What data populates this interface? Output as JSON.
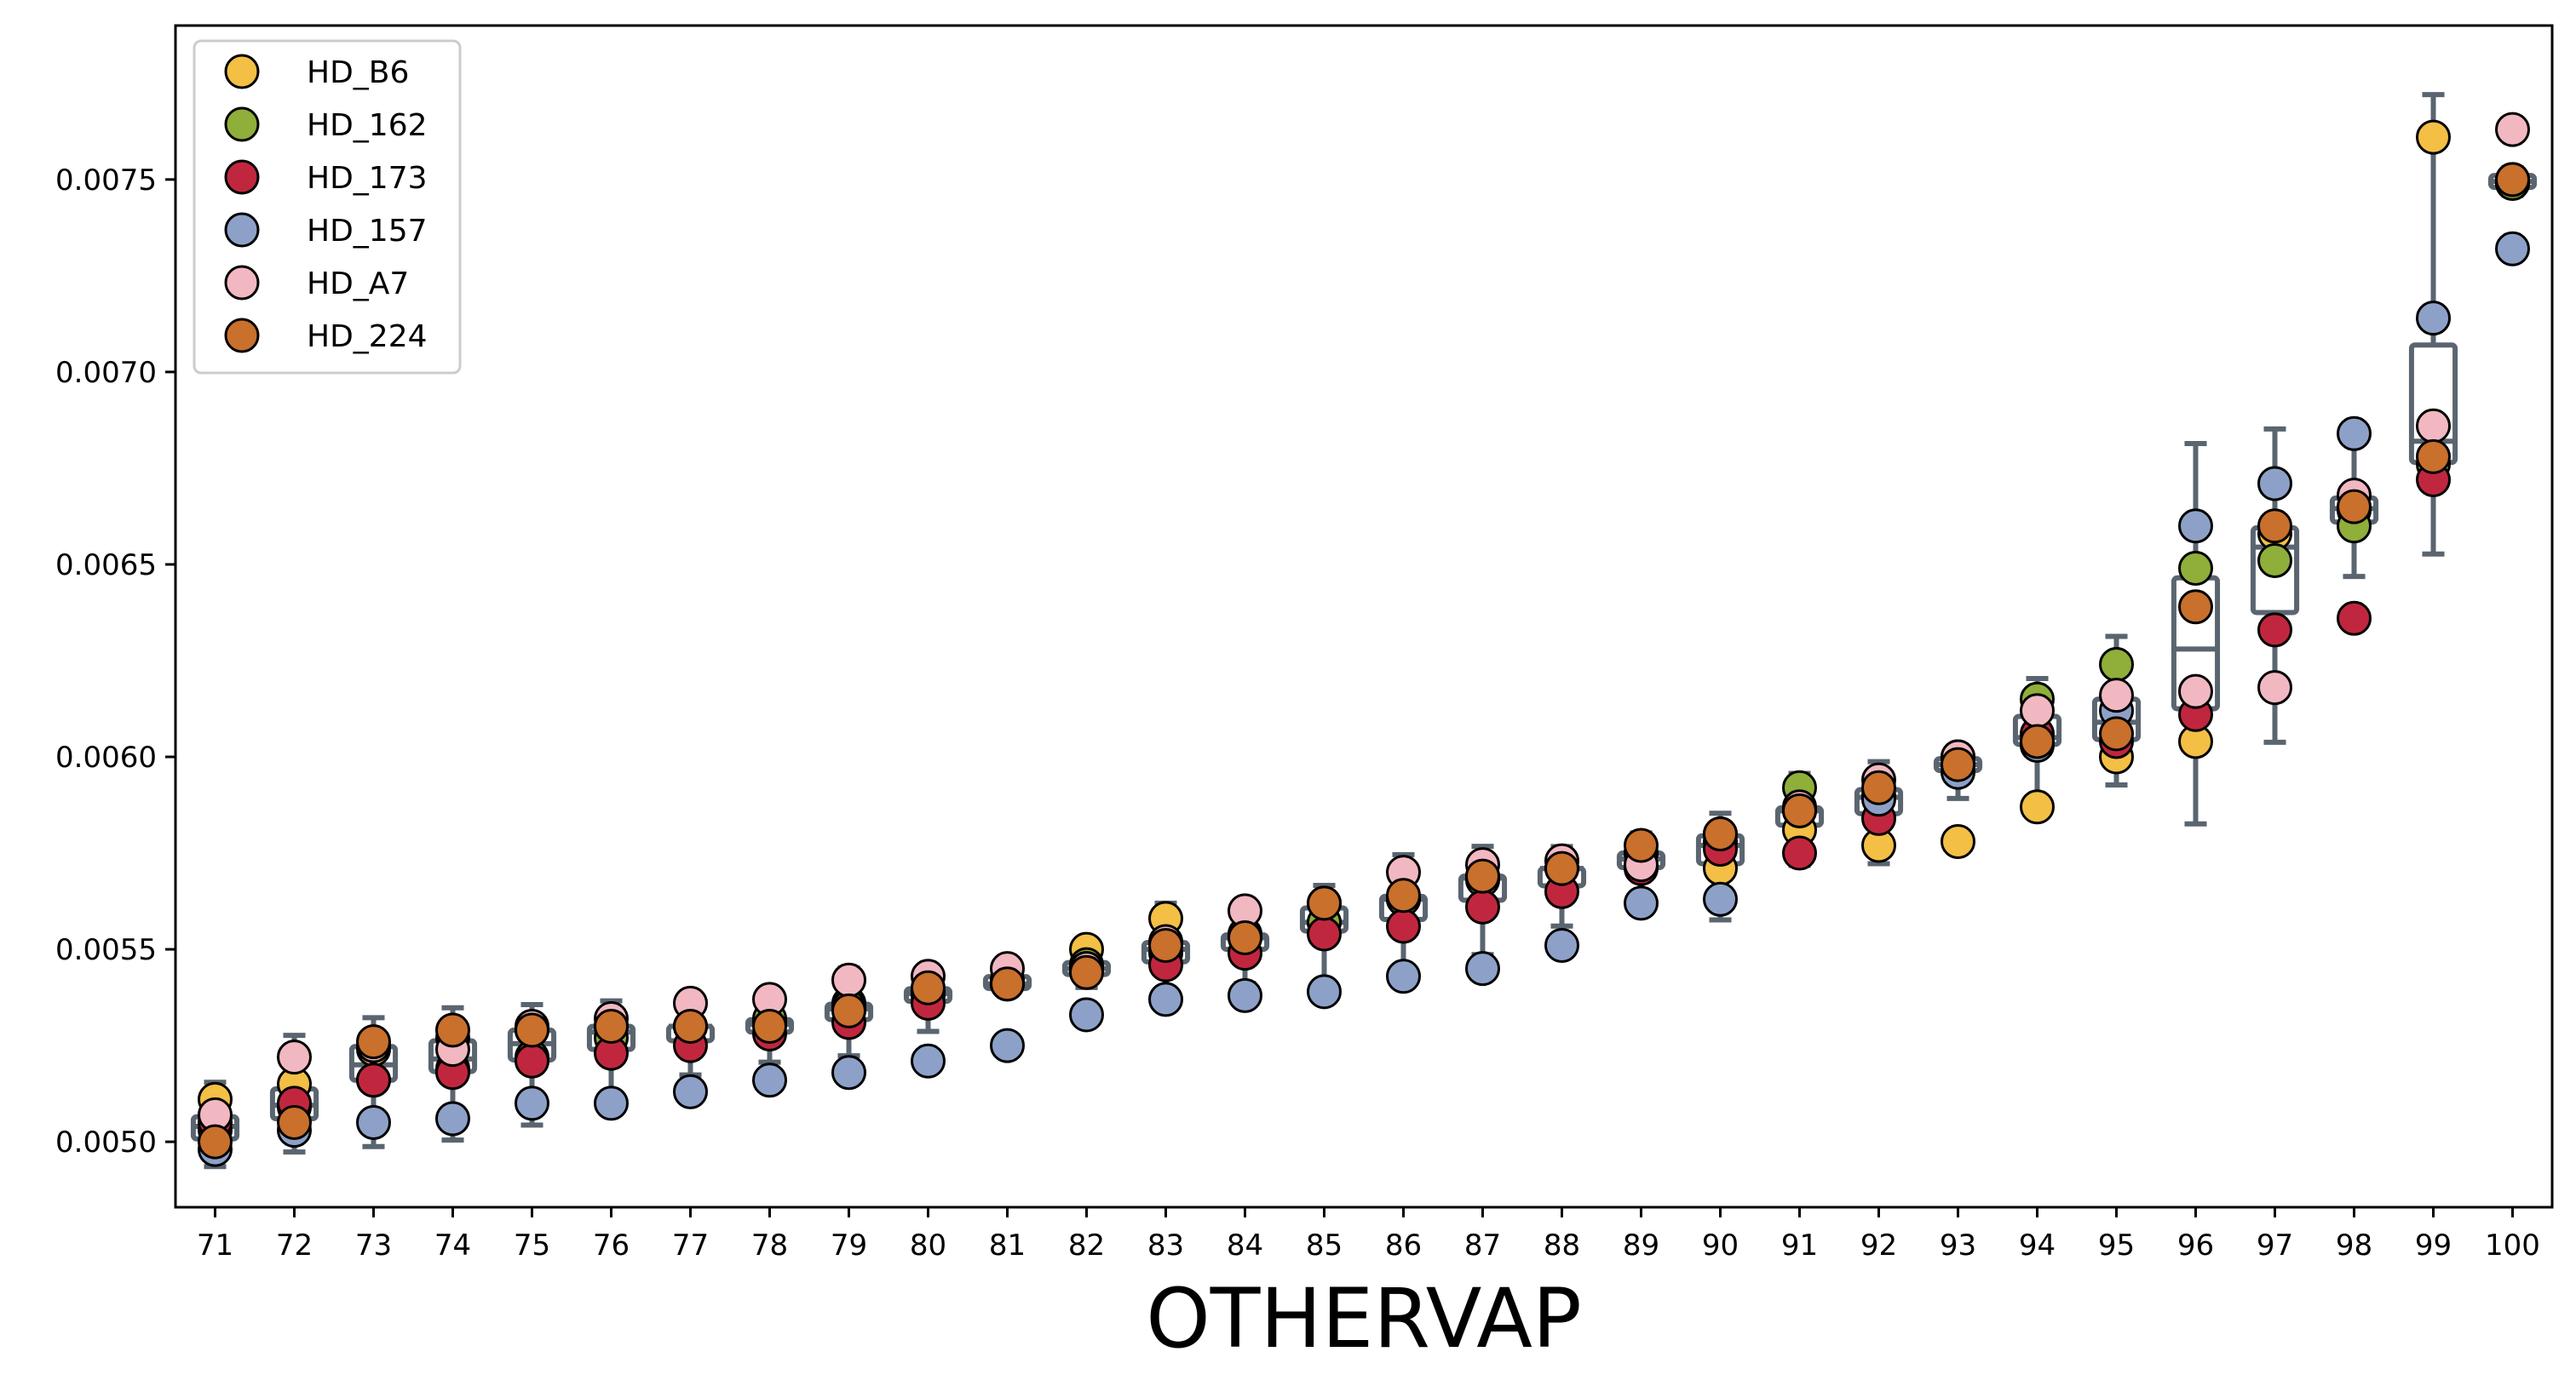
{
  "chart_data": {
    "type": "scatter",
    "title": "",
    "xlabel": "OTHERVAP",
    "ylabel": "",
    "x": [
      71,
      72,
      73,
      74,
      75,
      76,
      77,
      78,
      79,
      80,
      81,
      82,
      83,
      84,
      85,
      86,
      87,
      88,
      89,
      90,
      91,
      92,
      93,
      94,
      95,
      96,
      97,
      98,
      99,
      100
    ],
    "ylim": [
      0.00483,
      0.0079
    ],
    "yticks": [
      0.005,
      0.0055,
      0.006,
      0.0065,
      0.007,
      0.0075
    ],
    "ytick_labels": [
      "0.0050",
      "0.0055",
      "0.0060",
      "0.0065",
      "0.0070",
      "0.0075"
    ],
    "grid": false,
    "legend_position": "top-left",
    "box_color": "#5a6570",
    "series": [
      {
        "name": "HD_B6",
        "color": "#f3bf45",
        "values": [
          0.00511,
          0.00515,
          0.00524,
          0.00527,
          0.00529,
          0.0053,
          0.0053,
          0.00531,
          0.00536,
          0.00538,
          0.00542,
          0.0055,
          0.00558,
          0.00554,
          0.00557,
          0.00563,
          0.00569,
          0.00571,
          0.00575,
          0.00571,
          0.00581,
          0.00577,
          0.00578,
          0.00587,
          0.006,
          0.00604,
          0.00658,
          0.00664,
          0.00761,
          0.00749
        ]
      },
      {
        "name": "HD_162",
        "color": "#8fae3a",
        "values": [
          0.00503,
          0.00509,
          0.00516,
          0.00519,
          0.00522,
          0.00527,
          0.0053,
          0.00532,
          0.00535,
          0.00539,
          0.00541,
          0.00546,
          0.00549,
          0.00553,
          0.00557,
          0.00563,
          0.00568,
          0.00571,
          0.00575,
          0.00578,
          0.00592,
          0.0059,
          0.006,
          0.00615,
          0.00624,
          0.00649,
          0.00651,
          0.0066,
          0.00676,
          0.00749
        ]
      },
      {
        "name": "HD_173",
        "color": "#c0273f",
        "values": [
          0.00505,
          0.0051,
          0.00516,
          0.00518,
          0.00521,
          0.00523,
          0.00525,
          0.00528,
          0.00531,
          0.00536,
          0.00541,
          0.00545,
          0.00546,
          0.00549,
          0.00554,
          0.00556,
          0.00561,
          0.00565,
          0.00571,
          0.00576,
          0.00575,
          0.00584,
          0.00598,
          0.00606,
          0.00604,
          0.00611,
          0.00633,
          0.00636,
          0.00672,
          0.0075
        ]
      },
      {
        "name": "HD_157",
        "color": "#8da1c8",
        "values": [
          0.00498,
          0.00503,
          0.00505,
          0.00506,
          0.0051,
          0.0051,
          0.00513,
          0.00516,
          0.00518,
          0.00521,
          0.00525,
          0.00533,
          0.00537,
          0.00538,
          0.00539,
          0.00543,
          0.00545,
          0.00551,
          0.00562,
          0.00563,
          0.00586,
          0.00589,
          0.00596,
          0.00603,
          0.00612,
          0.0066,
          0.00671,
          0.00684,
          0.00714,
          0.00732
        ]
      },
      {
        "name": "HD_A7",
        "color": "#f2b8c2",
        "values": [
          0.00507,
          0.00522,
          0.00525,
          0.00524,
          0.0053,
          0.00532,
          0.00536,
          0.00537,
          0.00542,
          0.00543,
          0.00545,
          0.00545,
          0.00552,
          0.0056,
          0.00562,
          0.0057,
          0.00572,
          0.00573,
          0.00572,
          0.0058,
          0.00587,
          0.00594,
          0.006,
          0.00612,
          0.00616,
          0.00617,
          0.00618,
          0.00668,
          0.00686,
          0.00763
        ]
      },
      {
        "name": "HD_224",
        "color": "#c8702c",
        "values": [
          0.005,
          0.00505,
          0.00526,
          0.00529,
          0.00529,
          0.0053,
          0.0053,
          0.0053,
          0.00534,
          0.0054,
          0.00541,
          0.00544,
          0.00551,
          0.00553,
          0.00562,
          0.00564,
          0.00569,
          0.00571,
          0.00577,
          0.0058,
          0.00586,
          0.00592,
          0.00598,
          0.00604,
          0.00606,
          0.00639,
          0.0066,
          0.00665,
          0.00678,
          0.0075
        ]
      }
    ]
  }
}
